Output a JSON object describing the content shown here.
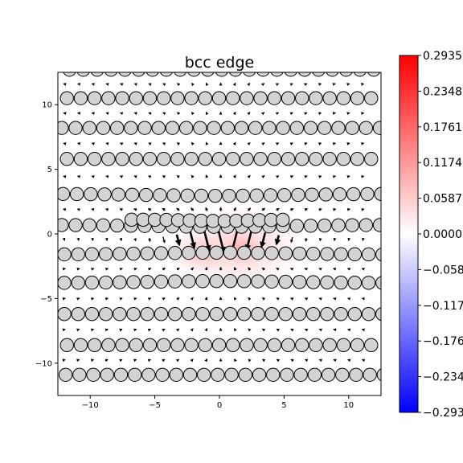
{
  "chart_data": {
    "type": "quiver",
    "title": "bcc edge",
    "xlim": [
      -12.5,
      12.5
    ],
    "ylim": [
      -12.5,
      12.5
    ],
    "x_ticks": [
      -10,
      -5,
      0,
      5,
      10
    ],
    "x_tick_labels": [
      "−10",
      "−5",
      "0",
      "5",
      "10"
    ],
    "y_ticks": [
      -10,
      -5,
      0,
      5,
      10
    ],
    "y_tick_labels": [
      "−10",
      "−5",
      "0",
      "5",
      "10"
    ],
    "grid": false,
    "atom_rows": [
      {
        "y": 12.7,
        "x0": -11.6,
        "spacing": 1.07
      },
      {
        "y": 10.5,
        "x0": -11.8,
        "spacing": 1.07
      },
      {
        "y": 8.2,
        "x0": -12.2,
        "spacing": 1.07
      },
      {
        "y": 5.8,
        "x0": -11.8,
        "spacing": 1.07
      },
      {
        "y": 3.1,
        "x0": -12.1,
        "spacing": 1.07
      },
      {
        "y": 0.7,
        "x0": -12.2,
        "spacing": 1.07
      },
      {
        "y": -1.6,
        "x0": -12.0,
        "spacing": 1.07
      },
      {
        "y": -3.8,
        "x0": -12.0,
        "spacing": 1.07
      },
      {
        "y": -6.2,
        "x0": -12.0,
        "spacing": 1.07
      },
      {
        "y": -8.6,
        "x0": -11.8,
        "spacing": 1.07
      },
      {
        "y": -10.9,
        "x0": -11.9,
        "spacing": 1.07
      }
    ],
    "extra_half_plane": {
      "y": 1.1,
      "x_min": -6.8,
      "x_max": 5.6,
      "spacing": 0.9
    },
    "colorbar": {
      "cmap": "bwr",
      "vmin": -0.2935,
      "vmax": 0.2935,
      "tick_labels": [
        "0.2935",
        "0.2348",
        "0.1761",
        "0.1174",
        "0.0587",
        "0.0000",
        "−0.0587",
        "−0.1174",
        "−0.1761",
        "−0.2348",
        "−0.2935"
      ],
      "tick_values": [
        0.2935,
        0.2348,
        0.1761,
        0.1174,
        0.0587,
        0.0,
        -0.0587,
        -0.1174,
        -0.1761,
        -0.2348,
        -0.2935
      ]
    },
    "field": {
      "type": "strain-heatmap",
      "peak": 0.12,
      "center": [
        1.5,
        -1.0
      ]
    }
  }
}
